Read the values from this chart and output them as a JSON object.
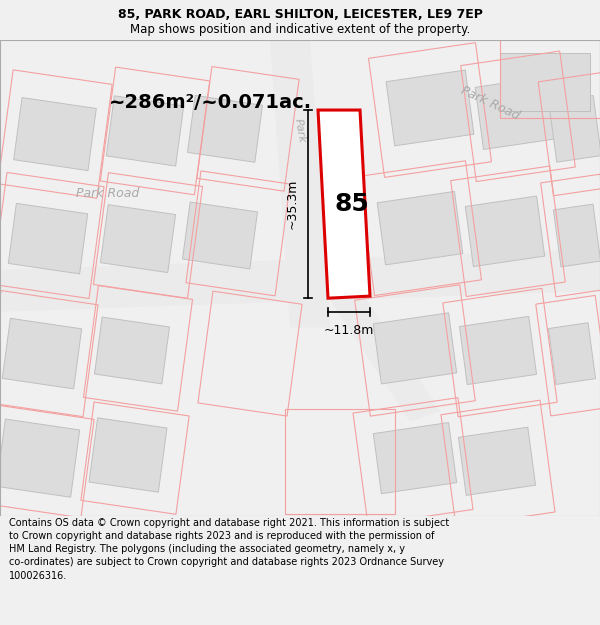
{
  "title_line1": "85, PARK ROAD, EARL SHILTON, LEICESTER, LE9 7EP",
  "title_line2": "Map shows position and indicative extent of the property.",
  "footer_text": "Contains OS data © Crown copyright and database right 2021. This information is subject to Crown copyright and database rights 2023 and is reproduced with the permission of HM Land Registry. The polygons (including the associated geometry, namely x, y co-ordinates) are subject to Crown copyright and database rights 2023 Ordnance Survey 100026316.",
  "area_label": "~286m²/~0.071ac.",
  "property_number": "85",
  "dim_height": "~35.3m",
  "dim_width": "~11.8m",
  "road_label_left": "Park Road",
  "road_label_right": "Park Road",
  "road_label_diag": "Park",
  "bg_color": "#f0f0f0",
  "map_bg": "#ffffff",
  "property_fill": "#ffffff",
  "property_edge": "#dd0000",
  "building_fill": "#dcdcdc",
  "building_edge": "#c0c0c0",
  "outline_color": "#f4a0a0",
  "road_fill": "#ececec",
  "title_fontsize": 9,
  "subtitle_fontsize": 8.5,
  "footer_fontsize": 7,
  "road_label_color": "#aaaaaa",
  "dim_color": "#222222",
  "area_fontsize": 14,
  "prop_num_fontsize": 18
}
